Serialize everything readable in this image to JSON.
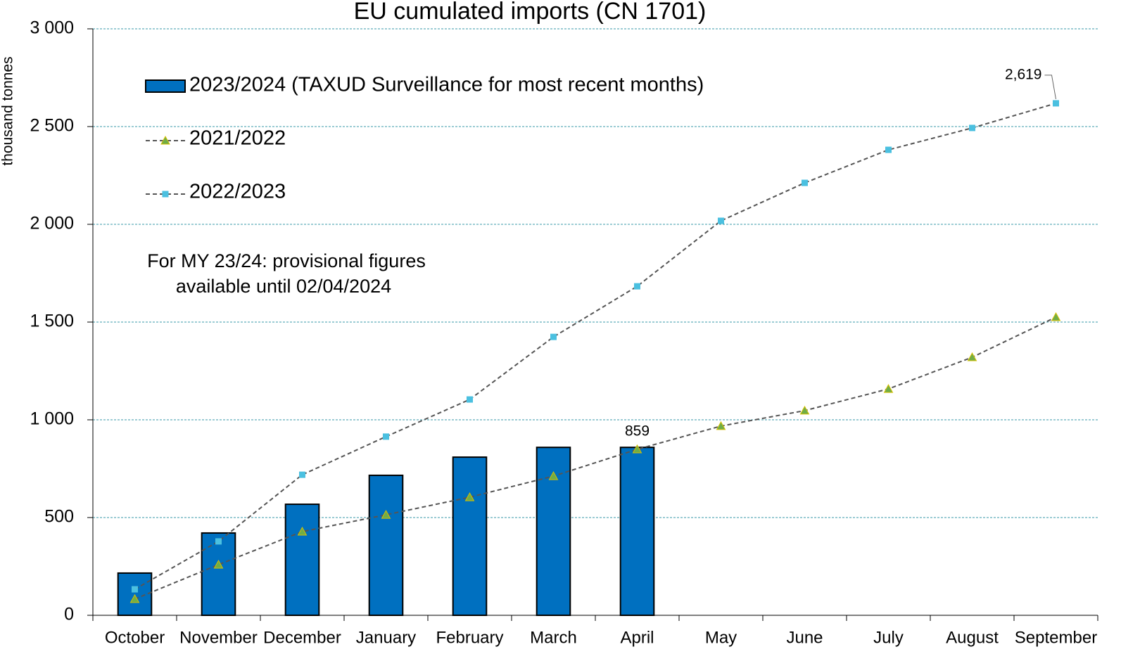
{
  "chart_data": {
    "type": "bar",
    "title": "EU cumulated imports (CN 1701)",
    "y_label": "thousand tonnes",
    "annotation": [
      "For MY 23/24: provisional figures",
      "available until 02/04/2024"
    ],
    "categories": [
      "October",
      "November",
      "December",
      "January",
      "February",
      "March",
      "April",
      "May",
      "June",
      "July",
      "August",
      "September"
    ],
    "series": [
      {
        "name": "2023/2024 (TAXUD Surveillance for most recent months)",
        "type": "bar",
        "color": "#0070c0",
        "values": [
          216,
          421,
          568,
          716,
          809,
          859,
          859,
          null,
          null,
          null,
          null,
          null
        ],
        "value_labels": [
          null,
          null,
          null,
          null,
          null,
          null,
          "859",
          null,
          null,
          null,
          null,
          null
        ]
      },
      {
        "name": "2021/2022",
        "type": "line",
        "marker": "triangle",
        "color": "#70ad47",
        "values": [
          83,
          259,
          428,
          514,
          604,
          712,
          849,
          968,
          1047,
          1158,
          1320,
          1525
        ]
      },
      {
        "name": "2022/2023",
        "type": "line",
        "marker": "square",
        "color": "#4bc0e0",
        "values": [
          133,
          378,
          719,
          914,
          1104,
          1424,
          1683,
          2018,
          2212,
          2381,
          2493,
          2619
        ],
        "value_labels": [
          null,
          null,
          null,
          null,
          null,
          null,
          null,
          null,
          null,
          null,
          null,
          "2,619"
        ]
      }
    ],
    "ylim": [
      0,
      3000
    ],
    "yticks": [
      0,
      500,
      {
        "value": 1000,
        "label": "1 000"
      },
      {
        "value": 1500,
        "label": "1 500"
      },
      {
        "value": 2000,
        "label": "2 000"
      },
      {
        "value": 2500,
        "label": "2 500"
      },
      {
        "value": 3000,
        "label": "3 000"
      }
    ],
    "grid": true
  }
}
